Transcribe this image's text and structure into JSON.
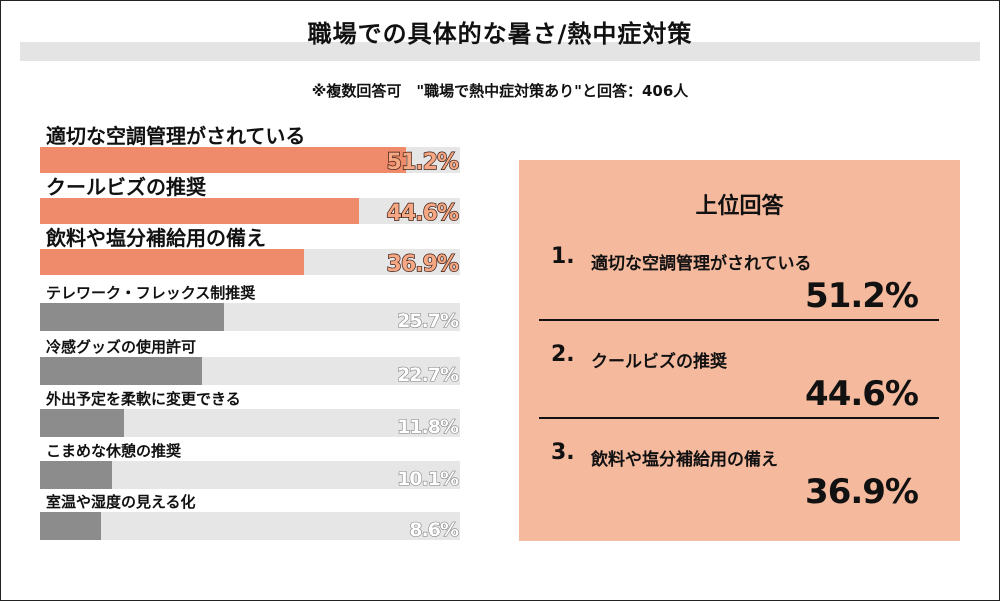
{
  "title": "職場での具体的な暑さ/熱中症対策",
  "subtitle": "※複数回答可　\"職場で熱中症対策あり\"と回答：406人",
  "colors": {
    "highlight_bar": "#ef8a6a",
    "normal_bar": "#8c8c8c",
    "track": "#e6e6e6",
    "panel": "#f5b99d",
    "highlight_value_fill": "#f6a783",
    "normal_value_fill": "#ffffff"
  },
  "chart_data": {
    "type": "bar",
    "orientation": "horizontal",
    "xlim": [
      0,
      64
    ],
    "categories": [
      "適切な空調管理がされている",
      "クールビズの推奨",
      "飲料や塩分補給用の備え",
      "テレワーク・フレックス制推奨",
      "冷感グッズの使用許可",
      "外出予定を柔軟に変更できる",
      "こまめな休憩の推奨",
      "室温や湿度の見える化"
    ],
    "values": [
      51.2,
      44.6,
      36.9,
      25.7,
      22.7,
      11.8,
      10.1,
      8.6
    ],
    "value_labels": [
      "51.2%",
      "44.6%",
      "36.9%",
      "25.7%",
      "22.7%",
      "11.8%",
      "10.1%",
      "8.6%"
    ],
    "highlighted": [
      true,
      true,
      true,
      false,
      false,
      false,
      false,
      false
    ]
  },
  "top_panel": {
    "heading": "上位回答",
    "items": [
      {
        "rank": "1.",
        "label": "適切な空調管理がされている",
        "value": "51.2%"
      },
      {
        "rank": "2.",
        "label": "クールビズの推奨",
        "value": "44.6%"
      },
      {
        "rank": "3.",
        "label": "飲料や塩分補給用の備え",
        "value": "36.9%"
      }
    ]
  }
}
